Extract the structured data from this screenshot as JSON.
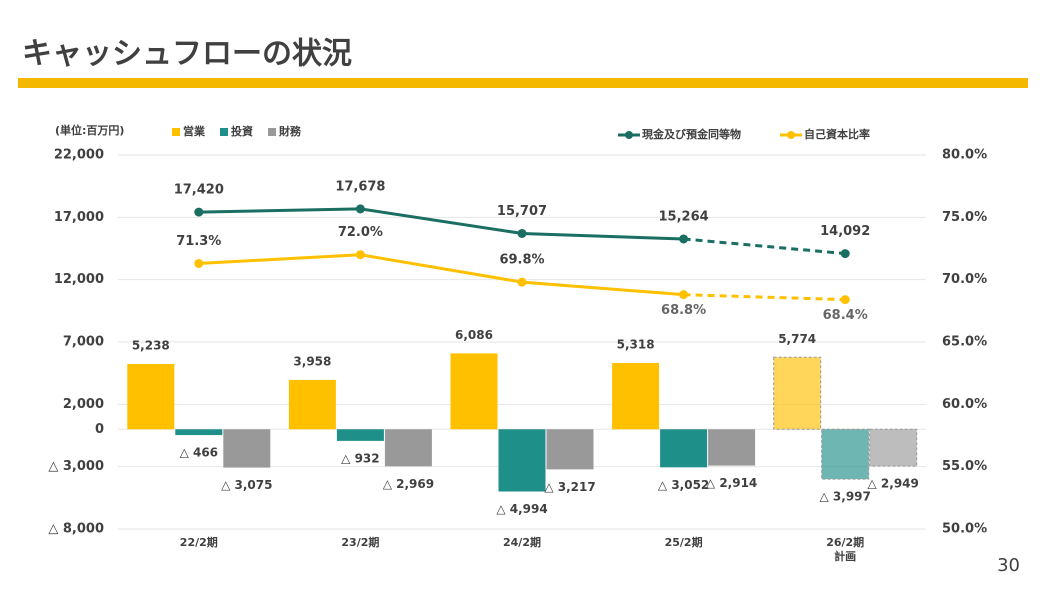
{
  "page_number": "30",
  "chart_data": {
    "type": "combo",
    "title": "キャッシュフローの状況",
    "y_label": "(単位:百万円)",
    "categories": [
      "22/2期",
      "23/2期",
      "24/2期",
      "25/2期",
      "26/2期\n計画"
    ],
    "ylim": [
      -8000,
      22000
    ],
    "yticks": [
      {
        "value": 22000,
        "label": "22,000"
      },
      {
        "value": 17000,
        "label": "17,000"
      },
      {
        "value": 12000,
        "label": "12,000"
      },
      {
        "value": 7000,
        "label": "7,000"
      },
      {
        "value": 2000,
        "label": "2,000"
      },
      0,
      {
        "value": -3000,
        "label": "△ 3,000"
      },
      {
        "value": -8000,
        "label": "△ 8,000"
      }
    ],
    "y2lim": [
      50,
      80
    ],
    "y2ticks": [
      {
        "value": 80,
        "label": "80.0%"
      },
      {
        "value": 75,
        "label": "75.0%"
      },
      {
        "value": 70,
        "label": "70.0%"
      },
      {
        "value": 65,
        "label": "65.0%"
      },
      {
        "value": 60,
        "label": "60.0%"
      },
      {
        "value": 55,
        "label": "55.0%"
      },
      {
        "value": 50,
        "label": "50.0%"
      }
    ],
    "grid": true,
    "series": [
      {
        "name": "営業",
        "type": "bar",
        "color": "#FFC000",
        "values": [
          5238,
          3958,
          6086,
          5318,
          5774
        ],
        "value_labels": [
          "5,238",
          "3,958",
          "6,086",
          "5,318",
          "5,774"
        ]
      },
      {
        "name": "投資",
        "type": "bar",
        "color": "#1F8F89",
        "values": [
          -466,
          -932,
          -4994,
          -3052,
          -3997
        ],
        "value_labels": [
          "△ 466",
          "△ 932",
          "△ 4,994",
          "△ 3,052",
          "△ 3,997"
        ]
      },
      {
        "name": "財務",
        "type": "bar",
        "color": "#999999",
        "values": [
          -3075,
          -2969,
          -3217,
          -2914,
          -2949
        ],
        "value_labels": [
          "△ 3,075",
          "△ 2,969",
          "△ 3,217",
          "△ 2,914",
          "△ 2,949"
        ]
      },
      {
        "name": "現金及び預金同等物",
        "type": "line",
        "color": "#1B6E62",
        "values": [
          17420,
          17678,
          15707,
          15264,
          14092
        ],
        "value_labels": [
          "17,420",
          "17,678",
          "15,707",
          "15,264",
          "14,092"
        ]
      },
      {
        "name": "自己資本比率",
        "type": "line",
        "axis": "y2",
        "color": "#FFC000",
        "values": [
          71.3,
          72.0,
          69.8,
          68.8,
          68.4
        ],
        "value_labels": [
          "71.3%",
          "72.0%",
          "69.8%",
          "68.8%",
          "68.4%"
        ]
      }
    ]
  }
}
